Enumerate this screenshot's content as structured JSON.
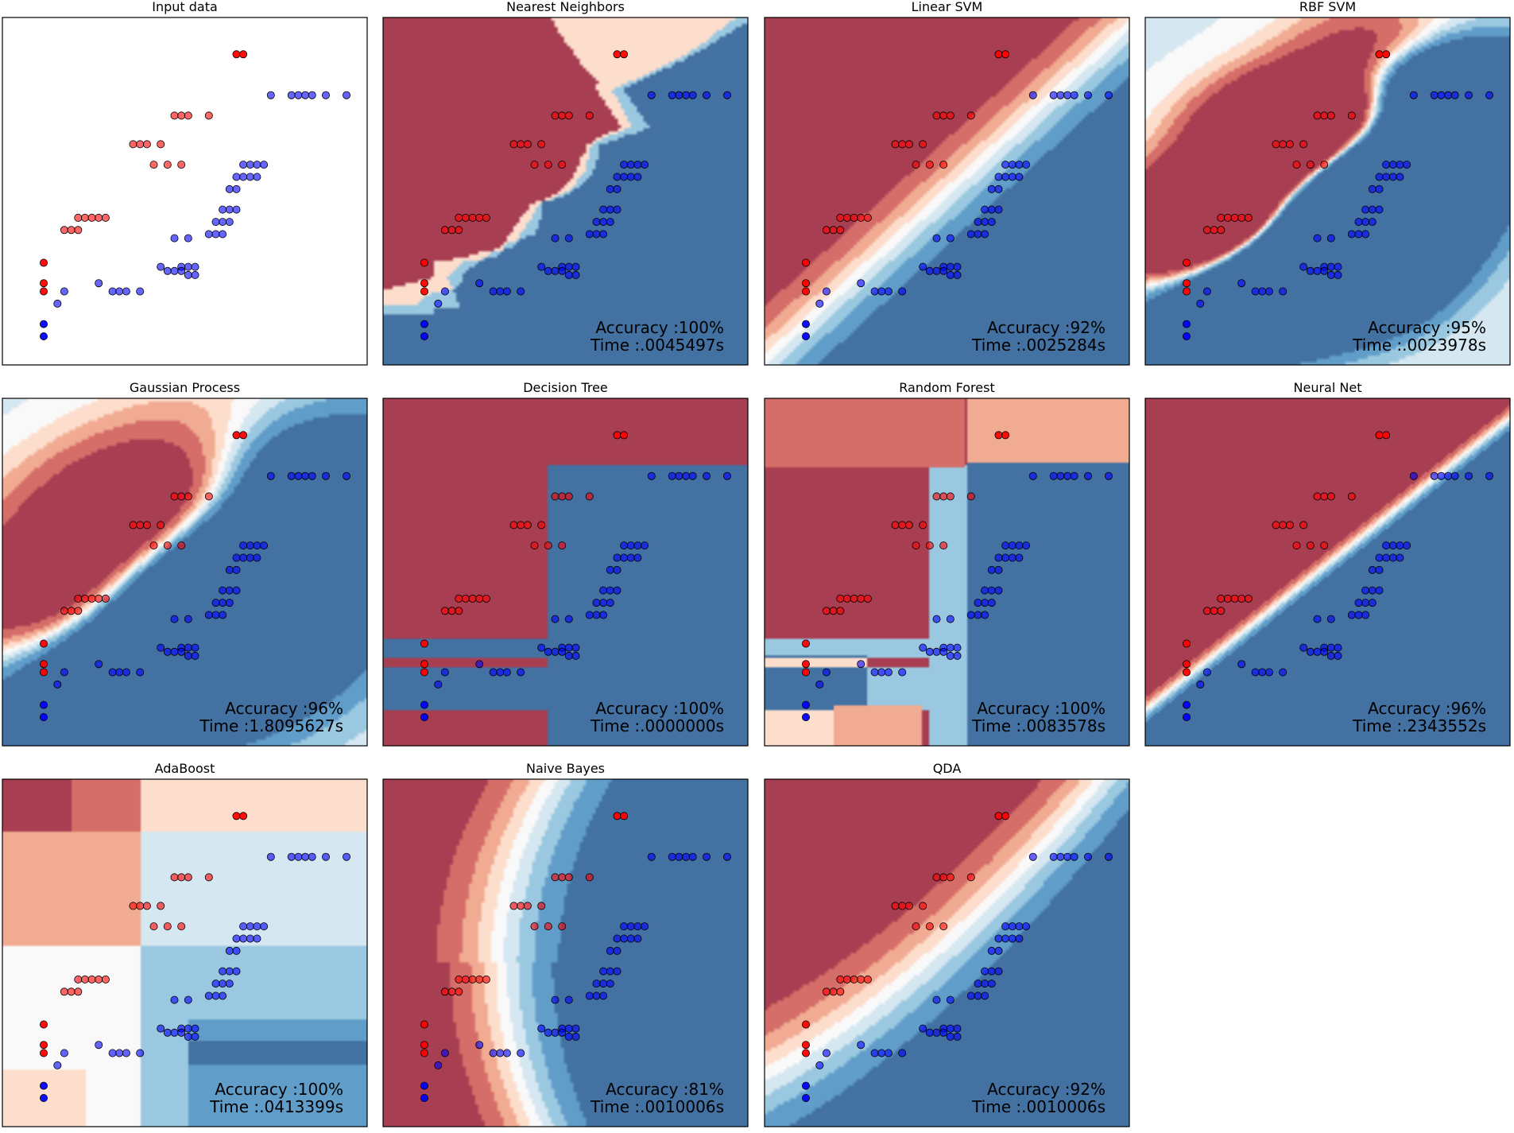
{
  "figure": {
    "colors": {
      "red_class": "#ff0000",
      "blue_class": "#0000ff",
      "colormap_red": "#b2182b",
      "colormap_neutral": "#f7f7f7",
      "colormap_blue": "#2166ac"
    }
  },
  "chart_data": [
    {
      "type": "scatter",
      "title": "Input data",
      "axes": {
        "visible_ticks": false
      },
      "series": [
        {
          "class": "red",
          "points": [
            [
              2.9,
              9.6
            ],
            [
              3.0,
              9.6
            ],
            [
              2.0,
              8.1
            ],
            [
              2.1,
              8.1
            ],
            [
              2.2,
              8.1
            ],
            [
              2.5,
              8.1
            ],
            [
              1.4,
              7.4
            ],
            [
              1.5,
              7.4
            ],
            [
              1.6,
              7.4
            ],
            [
              1.8,
              7.4
            ],
            [
              1.7,
              6.9
            ],
            [
              1.9,
              6.9
            ],
            [
              2.1,
              6.9
            ],
            [
              0.6,
              5.6
            ],
            [
              0.7,
              5.6
            ],
            [
              0.8,
              5.6
            ],
            [
              0.9,
              5.6
            ],
            [
              1.0,
              5.6
            ],
            [
              0.4,
              5.3
            ],
            [
              0.5,
              5.3
            ],
            [
              0.6,
              5.3
            ],
            [
              0.1,
              4.5
            ],
            [
              0.1,
              4.0
            ],
            [
              0.1,
              3.8
            ]
          ]
        },
        {
          "class": "blue",
          "points": [
            [
              3.4,
              8.6
            ],
            [
              3.7,
              8.6
            ],
            [
              3.8,
              8.6
            ],
            [
              3.9,
              8.6
            ],
            [
              4.0,
              8.6
            ],
            [
              4.2,
              8.6
            ],
            [
              4.5,
              8.6
            ],
            [
              3.0,
              6.9
            ],
            [
              3.1,
              6.9
            ],
            [
              3.2,
              6.9
            ],
            [
              3.3,
              6.9
            ],
            [
              2.9,
              6.6
            ],
            [
              3.0,
              6.6
            ],
            [
              3.1,
              6.6
            ],
            [
              3.2,
              6.6
            ],
            [
              2.8,
              6.3
            ],
            [
              2.9,
              6.3
            ],
            [
              2.7,
              5.8
            ],
            [
              2.8,
              5.8
            ],
            [
              2.9,
              5.8
            ],
            [
              2.6,
              5.5
            ],
            [
              2.7,
              5.5
            ],
            [
              2.8,
              5.5
            ],
            [
              2.0,
              5.1
            ],
            [
              2.2,
              5.1
            ],
            [
              2.5,
              5.2
            ],
            [
              2.6,
              5.2
            ],
            [
              2.7,
              5.2
            ],
            [
              2.1,
              4.4
            ],
            [
              2.2,
              4.4
            ],
            [
              2.3,
              4.4
            ],
            [
              1.8,
              4.4
            ],
            [
              1.9,
              4.3
            ],
            [
              2.0,
              4.3
            ],
            [
              2.1,
              4.3
            ],
            [
              2.2,
              4.2
            ],
            [
              2.3,
              4.2
            ],
            [
              0.9,
              4.0
            ],
            [
              0.4,
              3.8
            ],
            [
              1.1,
              3.8
            ],
            [
              1.2,
              3.8
            ],
            [
              1.3,
              3.8
            ],
            [
              1.5,
              3.8
            ],
            [
              0.3,
              3.5
            ],
            [
              0.1,
              3.0
            ],
            [
              0.1,
              2.7
            ]
          ]
        }
      ],
      "xlim": [
        -0.5,
        4.8
      ],
      "ylim": [
        2.0,
        10.5
      ]
    },
    {
      "type": "scatter",
      "title": "Nearest Neighbors",
      "annotations": [
        "Accuracy :100%",
        "Time :.0045497s"
      ]
    },
    {
      "type": "scatter",
      "title": "Linear SVM",
      "annotations": [
        "Accuracy :92%",
        "Time :.0025284s"
      ]
    },
    {
      "type": "scatter",
      "title": "RBF SVM",
      "annotations": [
        "Accuracy :95%",
        "Time :.0023978s"
      ]
    },
    {
      "type": "scatter",
      "title": "Gaussian Process",
      "annotations": [
        "Accuracy :96%",
        "Time :1.8095627s"
      ]
    },
    {
      "type": "scatter",
      "title": "Decision Tree",
      "annotations": [
        "Accuracy :100%",
        "Time :.0000000s"
      ]
    },
    {
      "type": "scatter",
      "title": "Random Forest",
      "annotations": [
        "Accuracy :100%",
        "Time :.0083578s"
      ]
    },
    {
      "type": "scatter",
      "title": "Neural Net",
      "annotations": [
        "Accuracy :96%",
        "Time :.2343552s"
      ]
    },
    {
      "type": "scatter",
      "title": "AdaBoost",
      "annotations": [
        "Accuracy :100%",
        "Time :.0413399s"
      ]
    },
    {
      "type": "scatter",
      "title": "Naive Bayes",
      "annotations": [
        "Accuracy :81%",
        "Time :.0010006s"
      ]
    },
    {
      "type": "scatter",
      "title": "QDA",
      "annotations": [
        "Accuracy :92%",
        "Time :.0010006s"
      ]
    }
  ]
}
